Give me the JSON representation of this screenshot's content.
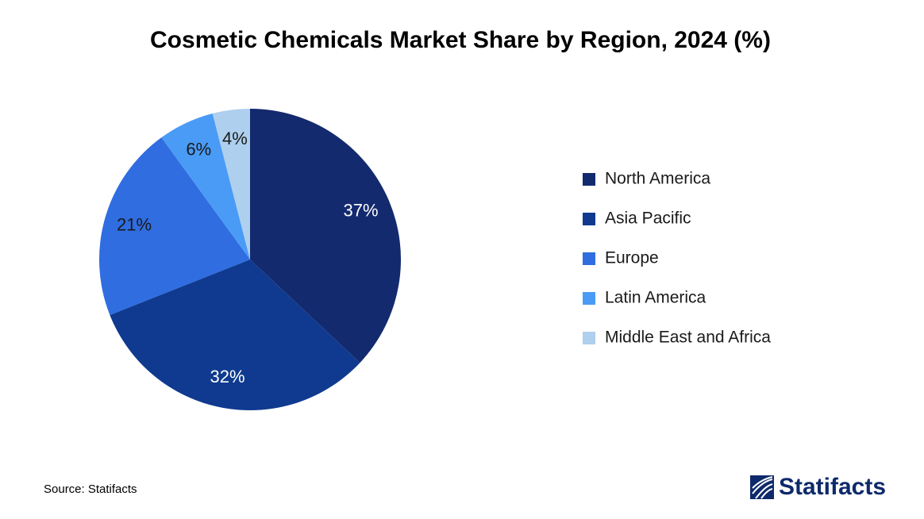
{
  "chart_data": {
    "type": "pie",
    "title": "Cosmetic Chemicals Market Share by Region, 2024 (%)",
    "series": [
      {
        "name": "North America",
        "color": "#132a6e",
        "values": [
          37
        ],
        "value_labels": [
          "37%"
        ]
      },
      {
        "name": "Asia Pacific",
        "color": "#0f3a8f",
        "values": [
          32
        ],
        "value_labels": [
          "32%"
        ]
      },
      {
        "name": "Europe",
        "color": "#2f6de0",
        "values": [
          21
        ],
        "value_labels": [
          "21%"
        ]
      },
      {
        "name": "Latin America",
        "color": "#4a9bf5",
        "values": [
          6
        ],
        "value_labels": [
          "6%"
        ]
      },
      {
        "name": "Middle East and Africa",
        "color": "#aecfee",
        "values": [
          4
        ],
        "value_labels": [
          "4%"
        ]
      }
    ],
    "legend": "right",
    "source": "Source: Statifacts",
    "brand": "Statifacts"
  }
}
